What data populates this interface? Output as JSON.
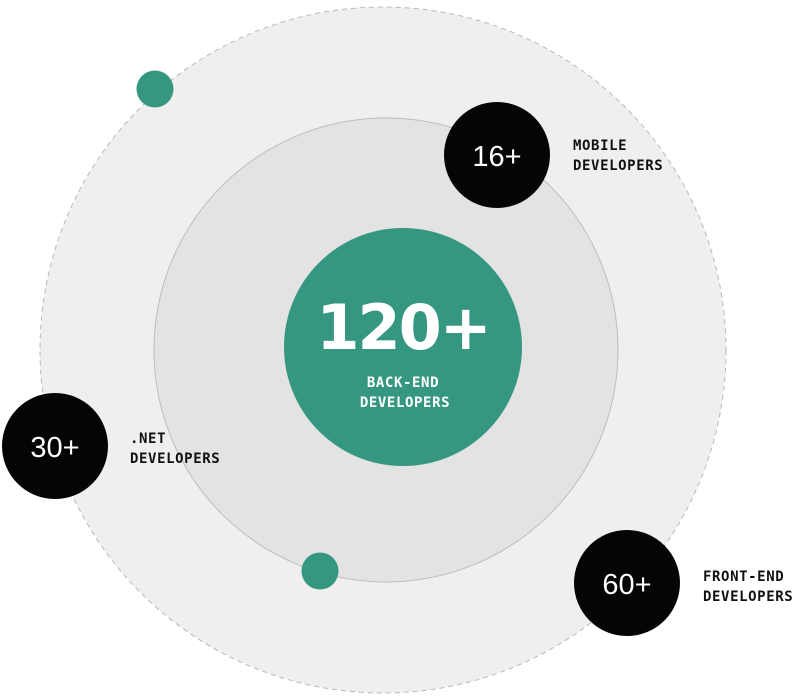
{
  "center": {
    "value": "120+",
    "label_lines": [
      "BACK-END",
      "DEVELOPERS"
    ]
  },
  "nodes": [
    {
      "id": "mobile",
      "value": "16+",
      "label_lines": [
        "MOBILE",
        "DEVELOPERS"
      ]
    },
    {
      "id": "dotnet",
      "value": "30+",
      "label_lines": [
        ".NET",
        "DEVELOPERS"
      ]
    },
    {
      "id": "frontend",
      "value": "60+",
      "label_lines": [
        "FRONT-END",
        "DEVELOPERS"
      ]
    }
  ],
  "colors": {
    "accent": "#35977f",
    "node": "#050505",
    "outer_ring_fill": "#efefef",
    "inner_ring_fill": "#e3e3e3"
  }
}
